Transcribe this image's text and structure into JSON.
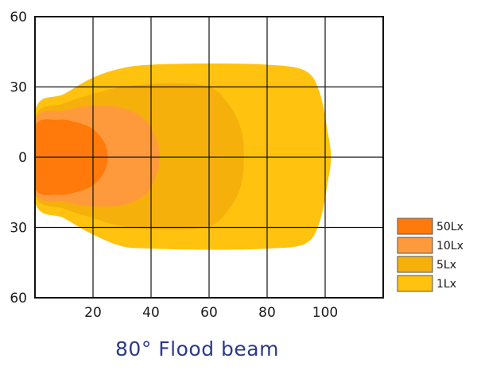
{
  "chart_data": {
    "type": "area",
    "title": "80°  Flood beam",
    "xlim": [
      0,
      120
    ],
    "ylim": [
      -60,
      60
    ],
    "x_ticks": [
      {
        "value": 20,
        "label": "20"
      },
      {
        "value": 40,
        "label": "40"
      },
      {
        "value": 60,
        "label": "60"
      },
      {
        "value": 80,
        "label": "80"
      },
      {
        "value": 100,
        "label": "100"
      }
    ],
    "y_ticks": [
      {
        "value": 60,
        "label": "60"
      },
      {
        "value": 30,
        "label": "30"
      },
      {
        "value": 0,
        "label": "0"
      },
      {
        "value": -30,
        "label": "30"
      },
      {
        "value": -60,
        "label": "60"
      }
    ],
    "grid": true,
    "legend_position": "right",
    "series": [
      {
        "name": "1Lx",
        "color": "#FFC20E",
        "outline": [
          [
            0,
            20
          ],
          [
            10,
            27
          ],
          [
            20,
            34
          ],
          [
            30,
            38
          ],
          [
            40,
            39.5
          ],
          [
            60,
            40
          ],
          [
            80,
            39.5
          ],
          [
            93,
            37
          ],
          [
            98,
            28
          ],
          [
            101,
            10
          ],
          [
            102,
            0
          ],
          [
            101,
            -10
          ],
          [
            98,
            -28
          ],
          [
            93,
            -37
          ],
          [
            80,
            -39
          ],
          [
            60,
            -39.5
          ],
          [
            40,
            -39
          ],
          [
            30,
            -38
          ],
          [
            20,
            -33
          ],
          [
            10,
            -26
          ],
          [
            0,
            -19
          ]
        ]
      },
      {
        "name": "5Lx",
        "color": "#F5B00C",
        "outline": [
          [
            0,
            17
          ],
          [
            10,
            23
          ],
          [
            20,
            27
          ],
          [
            30,
            30
          ],
          [
            45,
            31.5
          ],
          [
            60,
            30
          ],
          [
            67,
            22
          ],
          [
            71,
            12
          ],
          [
            72,
            0
          ],
          [
            71,
            -12
          ],
          [
            67,
            -22
          ],
          [
            60,
            -29.5
          ],
          [
            45,
            -31
          ],
          [
            30,
            -29.5
          ],
          [
            20,
            -26
          ],
          [
            10,
            -22
          ],
          [
            0,
            -16
          ]
        ]
      },
      {
        "name": "10Lx",
        "color": "#FF9A3C",
        "outline": [
          [
            0,
            16
          ],
          [
            10,
            20
          ],
          [
            20,
            22
          ],
          [
            30,
            21
          ],
          [
            38,
            16
          ],
          [
            42,
            7
          ],
          [
            43,
            0
          ],
          [
            42,
            -7
          ],
          [
            38,
            -16
          ],
          [
            30,
            -20.5
          ],
          [
            20,
            -21
          ],
          [
            10,
            -19
          ],
          [
            0,
            -15
          ]
        ]
      },
      {
        "name": "50Lx",
        "color": "#FF7A0A",
        "outline": [
          [
            0,
            13
          ],
          [
            8,
            16
          ],
          [
            14,
            15
          ],
          [
            20,
            12
          ],
          [
            24,
            6
          ],
          [
            25,
            0
          ],
          [
            24,
            -6
          ],
          [
            20,
            -12
          ],
          [
            14,
            -15
          ],
          [
            8,
            -16
          ],
          [
            0,
            -13
          ]
        ]
      }
    ],
    "legend": [
      {
        "label": "50Lx",
        "color": "#FF7A0A"
      },
      {
        "label": "10Lx",
        "color": "#FF9A3C"
      },
      {
        "label": "5Lx",
        "color": "#F5B00C"
      },
      {
        "label": "1Lx",
        "color": "#FFC20E"
      }
    ]
  }
}
